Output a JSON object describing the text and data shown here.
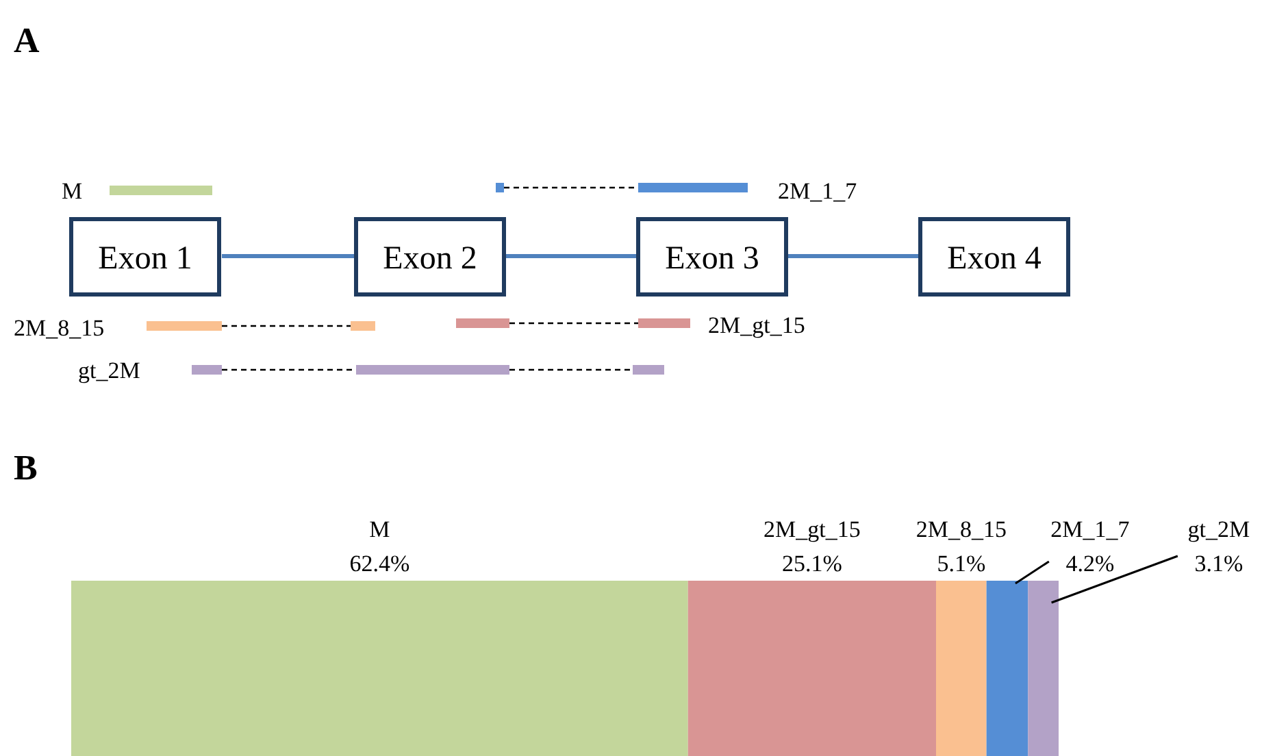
{
  "chart_data": [
    {
      "type": "other",
      "title": "A",
      "annotations": [
        "M",
        "2M_1_7",
        "Exon 1",
        "Exon 2",
        "Exon 3",
        "Exon 4",
        "2M_8_15",
        "2M_gt_15",
        "gt_2M"
      ]
    },
    {
      "type": "bar",
      "title": "B",
      "orientation": "horizontal",
      "stacked": true,
      "categories": [
        null
      ],
      "series": [
        {
          "name": "M",
          "color": "#c3d69b",
          "values": [
            62.4
          ],
          "value_labels": [
            "62.4%"
          ]
        },
        {
          "name": "2M_gt_15",
          "color": "#d99594",
          "values": [
            25.1
          ],
          "value_labels": [
            "25.1%"
          ]
        },
        {
          "name": "2M_8_15",
          "color": "#fac090",
          "values": [
            5.1
          ],
          "value_labels": [
            "5.1%"
          ]
        },
        {
          "name": "2M_1_7",
          "color": "#558ed5",
          "values": [
            4.2
          ],
          "value_labels": [
            "4.2%"
          ]
        },
        {
          "name": "gt_2M",
          "color": "#b3a2c7",
          "values": [
            3.1
          ],
          "value_labels": [
            "3.1%"
          ]
        }
      ]
    }
  ]
}
